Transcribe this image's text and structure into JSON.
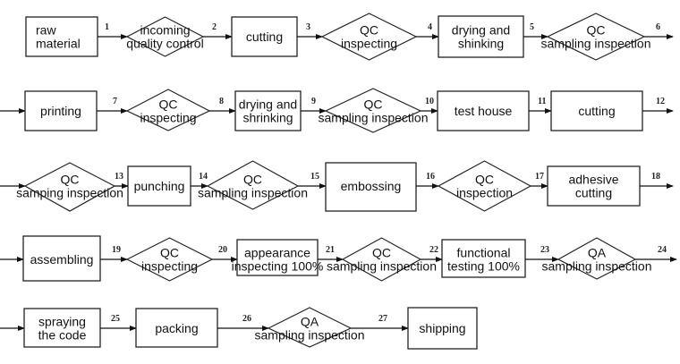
{
  "rows": [
    {
      "nodes": [
        {
          "shape": "process",
          "lines": [
            "raw",
            "material"
          ],
          "align": "left"
        },
        {
          "shape": "decision",
          "lines": [
            "incoming",
            "quality control"
          ]
        },
        {
          "shape": "process",
          "lines": [
            "cutting"
          ]
        },
        {
          "shape": "decision",
          "lines": [
            "QC",
            "inspecting"
          ]
        },
        {
          "shape": "process",
          "lines": [
            "drying and",
            "shinking"
          ]
        },
        {
          "shape": "decision",
          "lines": [
            "QC",
            "sampling inspection"
          ]
        }
      ],
      "edges": [
        "1",
        "2",
        "3",
        "4",
        "5",
        "6"
      ]
    },
    {
      "nodes": [
        {
          "shape": "process",
          "lines": [
            "printing"
          ]
        },
        {
          "shape": "decision",
          "lines": [
            "QC",
            "inspecting"
          ]
        },
        {
          "shape": "process",
          "lines": [
            "drying and",
            "shrinking"
          ]
        },
        {
          "shape": "decision",
          "lines": [
            "QC",
            "sampling inspection"
          ]
        },
        {
          "shape": "process",
          "lines": [
            "test house"
          ]
        },
        {
          "shape": "process",
          "lines": [
            "cutting"
          ]
        }
      ],
      "edges": [
        "7",
        "8",
        "9",
        "10",
        "11",
        "12"
      ]
    },
    {
      "nodes": [
        {
          "shape": "decision",
          "lines": [
            "QC",
            "samping inspection"
          ]
        },
        {
          "shape": "process",
          "lines": [
            "punching"
          ]
        },
        {
          "shape": "decision",
          "lines": [
            "QC",
            "sampling inspection"
          ]
        },
        {
          "shape": "process",
          "lines": [
            "embossing"
          ]
        },
        {
          "shape": "decision",
          "lines": [
            "QC",
            "inspection"
          ]
        },
        {
          "shape": "process",
          "lines": [
            "adhesive",
            "cutting"
          ]
        }
      ],
      "edges": [
        "13",
        "14",
        "15",
        "16",
        "17",
        "18"
      ]
    },
    {
      "nodes": [
        {
          "shape": "process",
          "lines": [
            "assembling"
          ]
        },
        {
          "shape": "decision",
          "lines": [
            "QC",
            "inspecting"
          ]
        },
        {
          "shape": "process",
          "lines": [
            "appearance",
            "inspecting 100%"
          ]
        },
        {
          "shape": "decision",
          "lines": [
            "QC",
            "sampling inspection"
          ]
        },
        {
          "shape": "process",
          "lines": [
            "functional",
            "testing 100%"
          ]
        },
        {
          "shape": "decision",
          "lines": [
            "QA",
            "sampling inspection"
          ]
        }
      ],
      "edges": [
        "19",
        "20",
        "21",
        "22",
        "23",
        "24"
      ]
    },
    {
      "nodes": [
        {
          "shape": "process",
          "lines": [
            "spraying",
            "the code"
          ]
        },
        {
          "shape": "process",
          "lines": [
            "packing"
          ]
        },
        {
          "shape": "decision",
          "lines": [
            "QA",
            "sampling inspection"
          ]
        },
        {
          "shape": "process",
          "lines": [
            "shipping"
          ]
        }
      ],
      "edges": [
        "25",
        "26",
        "27"
      ]
    }
  ]
}
